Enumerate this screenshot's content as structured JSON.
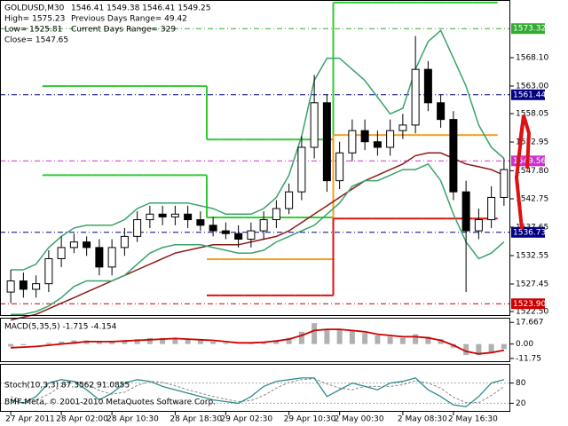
{
  "chart_data": {
    "type": "candlestick",
    "header": {
      "symbol": "GOLDUSD,M30",
      "ohlc": "1546.41 1549.38 1546.41 1549.25",
      "high": "High= 1575.23",
      "prev_range": "Previous Days Range= 49.42",
      "low": "Low= 1525.81",
      "cur_range": "Current Days Range= 329",
      "close": "Close= 1547.65"
    },
    "footer": "BMF-Meta, © 2001-2010 MetaQuotes Software Corp.",
    "categories": [
      "27 Apr 2011",
      null,
      null,
      null,
      "28 Apr 02:00",
      null,
      null,
      null,
      "28 Apr 10:30",
      null,
      null,
      null,
      null,
      "28 Apr 18:30",
      null,
      null,
      null,
      "29 Apr 02:30",
      null,
      null,
      null,
      null,
      "29 Apr 10:30",
      null,
      null,
      null,
      "2 May 00:30",
      null,
      null,
      null,
      null,
      "2 May 08:30",
      null,
      null,
      null,
      "2 May 16:30",
      null,
      null,
      null,
      null
    ],
    "open": [
      1526,
      1528,
      1526.5,
      1527.5,
      1532,
      1534,
      1535,
      1534,
      1530.5,
      1534,
      1536,
      1539,
      1540,
      1539.5,
      1540,
      1539,
      1538,
      1537,
      1536.5,
      1535.5,
      1537,
      1539,
      1541,
      1544,
      1552,
      1560,
      1546,
      1551,
      1555,
      1553,
      1552,
      1555,
      1556,
      1566,
      1560,
      1557,
      1544,
      1537,
      1539,
      1543
    ],
    "high": [
      1530,
      1529.5,
      1529,
      1533.5,
      1536,
      1536.5,
      1536,
      1535.5,
      1535.5,
      1537.5,
      1540.5,
      1541.5,
      1541.5,
      1541.5,
      1541.5,
      1540.5,
      1539.5,
      1538.5,
      1538,
      1538.5,
      1540.5,
      1542.5,
      1545.5,
      1554,
      1565,
      1561.5,
      1553,
      1557,
      1557,
      1555,
      1557,
      1558,
      1572,
      1567.5,
      1561.5,
      1558.5,
      1546,
      1541,
      1545,
      1550
    ],
    "low": [
      1524,
      1525,
      1525,
      1526,
      1530.5,
      1533,
      1532.5,
      1529,
      1529,
      1532.5,
      1535,
      1537.5,
      1538,
      1538,
      1537.5,
      1537,
      1536,
      1535.5,
      1534,
      1534,
      1535.5,
      1537.5,
      1540,
      1542.5,
      1550,
      1544,
      1544.5,
      1549.5,
      1551.5,
      1550.5,
      1550.5,
      1553.5,
      1554.5,
      1558.5,
      1555.5,
      1542.5,
      1526,
      1535.5,
      1537.5,
      1541.5
    ],
    "close": [
      1528,
      1526.5,
      1527.5,
      1532,
      1534,
      1535,
      1534,
      1530.5,
      1534,
      1536,
      1539,
      1540,
      1539.5,
      1540,
      1539,
      1538,
      1537,
      1536.5,
      1535.5,
      1537,
      1539,
      1541,
      1544,
      1552,
      1560,
      1546,
      1551,
      1555,
      1553,
      1552,
      1555,
      1556,
      1566,
      1560,
      1557,
      1544,
      1537,
      1539,
      1543,
      1548
    ],
    "series": [
      {
        "color": "#8b1a1a",
        "values": [
          1521,
          1521.5,
          1522,
          1523,
          1524,
          1525,
          1526,
          1527,
          1528,
          1529,
          1530,
          1531,
          1532,
          1533,
          1533.5,
          1534,
          1534.5,
          1534.5,
          1534.5,
          1535,
          1535.5,
          1536,
          1537,
          1538.5,
          1540,
          1541.5,
          1543,
          1544.5,
          1546,
          1547,
          1548,
          1549,
          1550.5,
          1551,
          1551,
          1550,
          1549,
          1548.5,
          1548,
          1547
        ]
      },
      {
        "color": "#3aa36a",
        "values": [
          1530,
          1530,
          1531,
          1534,
          1536,
          1537.5,
          1538,
          1538,
          1538,
          1539,
          1541,
          1542,
          1542,
          1542,
          1542,
          1541.5,
          1541,
          1540,
          1540,
          1540,
          1541,
          1543,
          1547,
          1554,
          1564,
          1568,
          1568,
          1566,
          1564,
          1561,
          1558,
          1559,
          1566,
          1571,
          1573,
          1568,
          1563,
          1556,
          1552,
          1550
        ]
      },
      {
        "color": "#3aa36a",
        "values": [
          1522,
          1522,
          1522.5,
          1523.5,
          1525,
          1527,
          1528,
          1528,
          1528,
          1529,
          1531,
          1533,
          1534,
          1534.5,
          1534.5,
          1534.5,
          1534,
          1533.5,
          1533,
          1533,
          1533.5,
          1535,
          1536,
          1537,
          1538,
          1540,
          1542,
          1545,
          1546,
          1546,
          1547,
          1548,
          1548,
          1549,
          1546,
          1540,
          1535,
          1532,
          1533,
          1535
        ]
      }
    ],
    "steps": [
      {
        "color": "#33cc33",
        "values": [
          null,
          null,
          null,
          1563,
          1563,
          1563,
          1563,
          1563,
          1563,
          1563,
          1563,
          1563,
          1563,
          1563,
          1563,
          1563,
          1553.4,
          1553.4,
          1553.4,
          1553.4,
          1553.4,
          1553.4,
          1553.4,
          1553.4,
          1553.4,
          1553.4,
          1578,
          1578,
          1578,
          1578,
          1578,
          1578,
          1578,
          1578,
          1578,
          1578,
          1578,
          1578,
          1578,
          null
        ]
      },
      {
        "color": "#33cc33",
        "values": [
          null,
          null,
          null,
          1547,
          1547,
          1547,
          1547,
          1547,
          1547,
          1547,
          1547,
          1547,
          1547,
          1547,
          1547,
          1547,
          1539.4,
          1539.4,
          1539.4,
          1539.4,
          1539.4,
          1539.4,
          1539.4,
          1539.4,
          1539.4,
          1539.4,
          null,
          null,
          null,
          null,
          null,
          null,
          null,
          null,
          null,
          null,
          null,
          null,
          null,
          null
        ]
      },
      {
        "color": "#f0a020",
        "values": [
          null,
          null,
          null,
          null,
          null,
          null,
          null,
          null,
          null,
          null,
          null,
          null,
          null,
          null,
          null,
          null,
          1531.9,
          1531.9,
          1531.9,
          1531.9,
          1531.9,
          1531.9,
          1531.9,
          1531.9,
          1531.9,
          1531.9,
          1554.2,
          1554.2,
          1554.2,
          1554.2,
          1554.2,
          1554.2,
          1554.2,
          1554.2,
          1554.2,
          1554.2,
          1554.2,
          1554.2,
          1554.2,
          null
        ]
      },
      {
        "color": "#dd1111",
        "values": [
          null,
          null,
          null,
          null,
          null,
          null,
          null,
          null,
          null,
          null,
          null,
          null,
          null,
          null,
          null,
          null,
          1525.4,
          1525.4,
          1525.4,
          1525.4,
          1525.4,
          1525.4,
          1525.4,
          1525.4,
          1525.4,
          1525.4,
          1539.2,
          1539.2,
          1539.2,
          1539.2,
          1539.2,
          1539.2,
          1539.2,
          1539.2,
          1539.2,
          1539.2,
          1539.2,
          1539.2,
          1539.2,
          null
        ]
      }
    ],
    "ylim": [
      1521.71,
      1578.46
    ],
    "yticks": [
      {
        "value": 1522.5,
        "label": "1522.50"
      },
      {
        "value": 1527.45,
        "label": "1527.45"
      },
      {
        "value": 1532.55,
        "label": "1532.55"
      },
      {
        "value": 1537.65,
        "label": "1537.65"
      },
      {
        "value": 1542.75,
        "label": "1542.75"
      },
      {
        "value": 1547.8,
        "label": "1547.80"
      },
      {
        "value": 1552.95,
        "label": "1552.95"
      },
      {
        "value": 1558.05,
        "label": "1558.05"
      },
      {
        "value": 1563,
        "label": "1563.00"
      },
      {
        "value": 1568.1,
        "label": "1568.10"
      }
    ],
    "markers": [
      {
        "value": 1573.32,
        "color": "#33aa33"
      },
      {
        "value": 1561.44,
        "color": "#000080"
      },
      {
        "value": 1549.56,
        "color": "#cc33cc"
      },
      {
        "value": 1536.73,
        "color": "#000080"
      },
      {
        "value": 1523.9,
        "label": "1523.90",
        "color": "#cc0000"
      }
    ],
    "macd": {
      "title": "MACD(5,35,5) -1.715 -4.154",
      "ylim": [
        -14,
        20
      ],
      "yticks": [
        17.667,
        {
          "value": 0,
          "label": "0.00"
        },
        -11.75
      ],
      "histogram": {
        "color": "#b0b0b0",
        "values": [
          -2,
          -1,
          0,
          1,
          2,
          3,
          3,
          2,
          2,
          3,
          4,
          5,
          5,
          5,
          4,
          3,
          2,
          1,
          0,
          1,
          2,
          3,
          5,
          10,
          17,
          12,
          12,
          11,
          9,
          7,
          6,
          5,
          8,
          6,
          4,
          -3,
          -9,
          -9,
          -7,
          -4
        ]
      },
      "signal": {
        "color": "#cc0000",
        "values": [
          -3,
          -2.5,
          -2,
          -1,
          0,
          1,
          2,
          2,
          2,
          2.5,
          3,
          3.5,
          4,
          4.5,
          4,
          3.5,
          3,
          2,
          1,
          1,
          1.5,
          2.5,
          4,
          7,
          11,
          12,
          12,
          11,
          10,
          8,
          7,
          6,
          6,
          5,
          3,
          -1,
          -6,
          -8,
          -7,
          -5
        ]
      }
    },
    "stoch": {
      "title": "Stoch(10,3,3) 87.3562 91.0855",
      "ylim": [
        0,
        100
      ],
      "yticks": [
        80,
        20
      ],
      "main": {
        "color": "#2e8b8b",
        "values": [
          30,
          20,
          40,
          80,
          90,
          85,
          60,
          30,
          50,
          80,
          90,
          85,
          70,
          60,
          50,
          40,
          30,
          25,
          20,
          40,
          70,
          85,
          90,
          95,
          95,
          40,
          60,
          80,
          70,
          60,
          80,
          85,
          95,
          60,
          40,
          15,
          10,
          40,
          80,
          90
        ]
      },
      "signal": {
        "color": "#888888",
        "values": [
          40,
          30,
          30,
          47,
          70,
          85,
          78,
          58,
          47,
          53,
          73,
          85,
          82,
          72,
          60,
          50,
          40,
          32,
          25,
          28,
          43,
          65,
          82,
          90,
          93,
          77,
          65,
          60,
          70,
          70,
          70,
          75,
          87,
          80,
          65,
          38,
          22,
          22,
          43,
          70
        ]
      }
    }
  }
}
